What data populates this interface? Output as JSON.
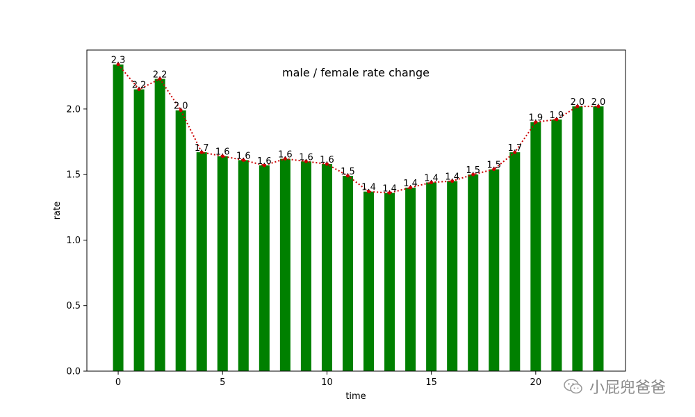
{
  "chart_data": {
    "type": "bar",
    "title": "male / female rate change",
    "xlabel": "time",
    "ylabel": "rate",
    "x": [
      0,
      1,
      2,
      3,
      4,
      5,
      6,
      7,
      8,
      9,
      10,
      11,
      12,
      13,
      14,
      15,
      16,
      17,
      18,
      19,
      20,
      21,
      22,
      23
    ],
    "values": [
      2.34,
      2.15,
      2.23,
      1.99,
      1.67,
      1.64,
      1.61,
      1.57,
      1.62,
      1.6,
      1.58,
      1.49,
      1.37,
      1.36,
      1.4,
      1.44,
      1.45,
      1.5,
      1.54,
      1.67,
      1.9,
      1.92,
      2.02,
      2.02
    ],
    "data_labels": [
      "2.3",
      "2.2",
      "2.2",
      "2.0",
      "1.7",
      "1.6",
      "1.6",
      "1.6",
      "1.6",
      "1.6",
      "1.6",
      "1.5",
      "1.4",
      "1.4",
      "1.4",
      "1.4",
      "1.4",
      "1.5",
      "1.5",
      "1.7",
      "1.9",
      "1.9",
      "2.0",
      "2.0"
    ],
    "bar_color": "#008000",
    "line_style": "dotted",
    "line_color": "#cc0000",
    "xticks": [
      0,
      5,
      10,
      15,
      20
    ],
    "yticks": [
      0.0,
      0.5,
      1.0,
      1.5,
      2.0
    ],
    "ytick_labels": [
      "0.0",
      "0.5",
      "1.0",
      "1.5",
      "2.0"
    ],
    "xlim": [
      -1.5,
      24.3
    ],
    "ylim": [
      0,
      2.45
    ],
    "grid": false,
    "legend": "none"
  },
  "watermark": {
    "text": "小屁兜爸爸",
    "icon": "wechat-icon"
  }
}
